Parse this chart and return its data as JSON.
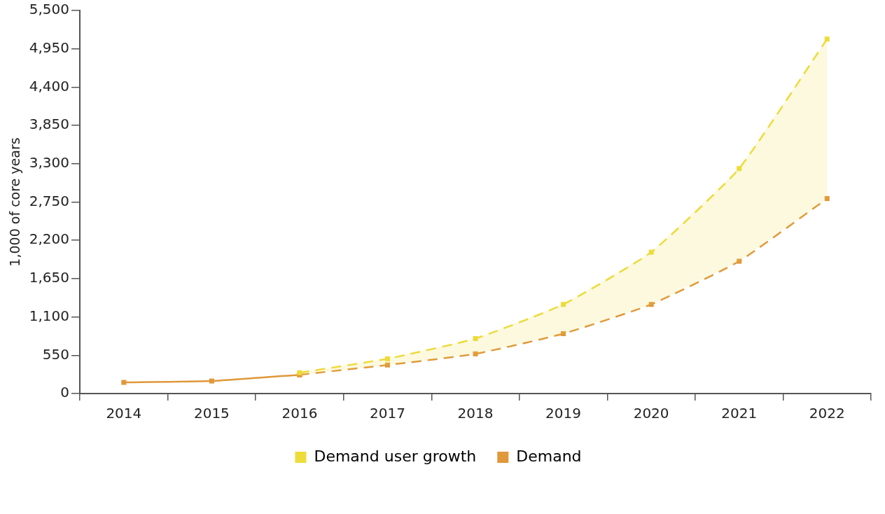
{
  "chart_data": {
    "type": "line",
    "ylabel": "1,000 of core years",
    "categories": [
      "2014",
      "2015",
      "2016",
      "2017",
      "2018",
      "2019",
      "2020",
      "2021",
      "2022"
    ],
    "ylim": [
      0,
      5500
    ],
    "yticks": [
      {
        "value": 0,
        "label": "0"
      },
      {
        "value": 550,
        "label": "550"
      },
      {
        "value": 1100,
        "label": "1,100"
      },
      {
        "value": 1650,
        "label": "1,650"
      },
      {
        "value": 2200,
        "label": "2,200"
      },
      {
        "value": 2750,
        "label": "2,750"
      },
      {
        "value": 3300,
        "label": "3,300"
      },
      {
        "value": 3850,
        "label": "3,850"
      },
      {
        "value": 4400,
        "label": "4,400"
      },
      {
        "value": 4950,
        "label": "4,950"
      },
      {
        "value": 5500,
        "label": "5,500"
      }
    ],
    "series": [
      {
        "name": "Demand user growth",
        "color": "#eedc3a",
        "line_style": "dashed",
        "values": [
          null,
          null,
          300,
          500,
          790,
          1280,
          2030,
          3230,
          5090
        ],
        "lower": [
          null,
          null,
          270,
          410,
          570,
          860,
          1280,
          1900,
          2800
        ],
        "upper": [
          null,
          null,
          300,
          500,
          790,
          1280,
          2030,
          3230,
          5090
        ]
      },
      {
        "name": "Demand",
        "color": "#e0983a",
        "line_style": "solid",
        "values": [
          160,
          180,
          270,
          null,
          null,
          null,
          null,
          null,
          null
        ]
      },
      {
        "color": "#e0983a",
        "line_style": "dashed",
        "values": [
          null,
          null,
          270,
          410,
          570,
          860,
          1280,
          1900,
          2800
        ]
      }
    ],
    "marker": "square",
    "legend": "bottom",
    "grid": false
  }
}
